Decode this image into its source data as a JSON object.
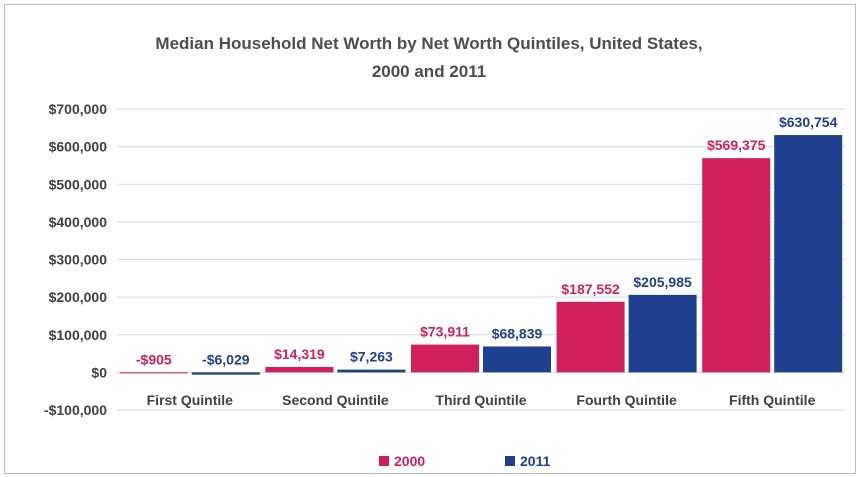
{
  "chart_data": {
    "type": "bar",
    "title": "Median Household Net Worth by Net Worth Quintiles, United States,",
    "subtitle": "2000 and 2011",
    "xlabel": "",
    "ylabel": "",
    "categories": [
      "First Quintile",
      "Second Quintile",
      "Third Quintile",
      "Fourth Quintile",
      "Fifth Quintile"
    ],
    "series": [
      {
        "name": "2000",
        "color": "#d21f5e",
        "values": [
          -905,
          14319,
          73911,
          187552,
          569375
        ],
        "labels": [
          "-$905",
          "$14,319",
          "$73,911",
          "$187,552",
          "$569,375"
        ]
      },
      {
        "name": "2011",
        "color": "#1f3f8f",
        "values": [
          -6029,
          7263,
          68839,
          205985,
          630754
        ],
        "labels": [
          "-$6,029",
          "$7,263",
          "$68,839",
          "$205,985",
          "$630,754"
        ]
      }
    ],
    "ylim": [
      -100000,
      700000
    ],
    "yticks": [
      700000,
      600000,
      500000,
      400000,
      300000,
      200000,
      100000,
      0,
      -100000
    ],
    "ytick_labels": [
      "$700,000",
      "$600,000",
      "$500,000",
      "$400,000",
      "$300,000",
      "$200,000",
      "$100,000",
      "$0",
      "-$100,000"
    ],
    "grid": true,
    "legend": "bottom-center"
  }
}
